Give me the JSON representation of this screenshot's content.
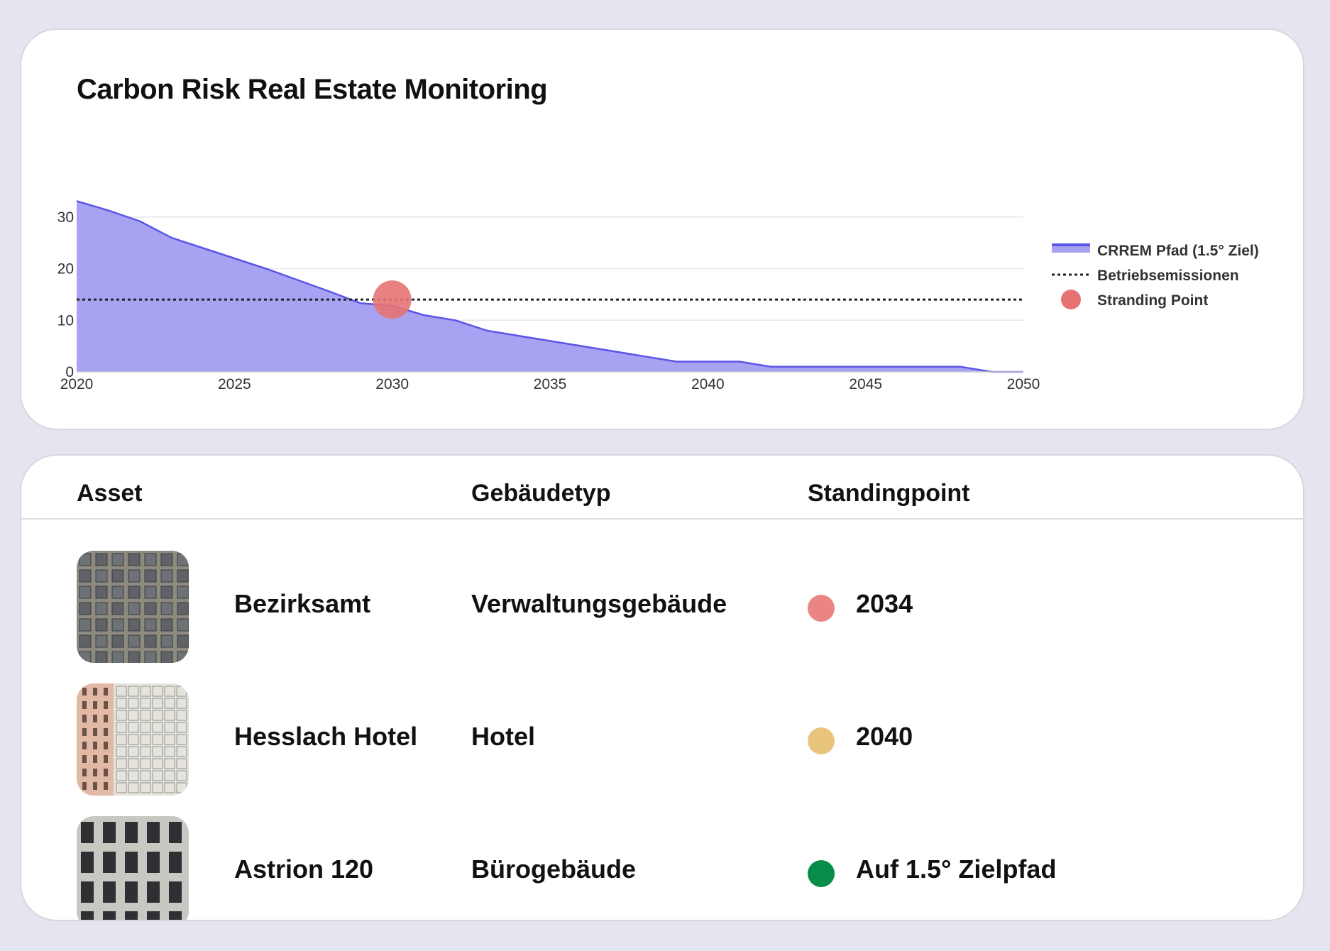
{
  "chart_card": {
    "title": "Carbon Risk Real Estate Monitoring"
  },
  "chart_data": {
    "type": "area",
    "title": "Carbon Risk Real Estate Monitoring",
    "xlabel": "",
    "ylabel": "",
    "xlim": [
      2020,
      2050
    ],
    "ylim": [
      0,
      33
    ],
    "x_ticks": [
      "2020",
      "2025",
      "2030",
      "2035",
      "2040",
      "2045",
      "2050"
    ],
    "y_ticks": [
      "0",
      "10",
      "20",
      "30"
    ],
    "grid": true,
    "legend_position": "right",
    "series": [
      {
        "name": "CRREM Pfad (1.5° Ziel)",
        "type": "area",
        "color": "#5b55e8",
        "fill": "#a7a2f2",
        "x": [
          2020,
          2021,
          2022,
          2023,
          2024,
          2025,
          2026,
          2027,
          2028,
          2029,
          2030,
          2031,
          2032,
          2033,
          2034,
          2035,
          2036,
          2037,
          2038,
          2039,
          2040,
          2041,
          2042,
          2043,
          2044,
          2045,
          2046,
          2047,
          2048,
          2049,
          2050
        ],
        "y": [
          33.1,
          31.3,
          29.2,
          26.0,
          24.0,
          22.0,
          20.0,
          17.8,
          15.6,
          13.3,
          12.8,
          11.0,
          10.0,
          8.0,
          7.0,
          6.0,
          5.0,
          4.0,
          3.0,
          2.0,
          2.0,
          2.0,
          1.0,
          1.0,
          1.0,
          1.0,
          1.0,
          1.0,
          1.0,
          0.0,
          0.0
        ]
      },
      {
        "name": "Betriebsemissionen",
        "type": "line",
        "style": "dotted",
        "color": "#222222",
        "x": [
          2020,
          2050
        ],
        "y": [
          14,
          14
        ]
      },
      {
        "name": "Stranding Point",
        "type": "scatter",
        "color": "#e57373",
        "x": [
          2030
        ],
        "y": [
          14
        ]
      }
    ]
  },
  "table": {
    "columns": [
      "Asset",
      "Gebäudetyp",
      "Standingpoint"
    ],
    "rows": [
      {
        "asset": "Bezirksamt",
        "type": "Verwaltungsgebäude",
        "standing": "2034",
        "status_color": "#eb8585",
        "thumb": "grey-grid-facade-image"
      },
      {
        "asset": "Hesslach Hotel",
        "type": "Hotel",
        "standing": "2040",
        "status_color": "#e9c47d",
        "thumb": "glass-hotel-facade-image"
      },
      {
        "asset": "Astrion 120",
        "type": "Bürogebäude",
        "standing": "Auf 1.5° Zielpfad",
        "status_color": "#078d48",
        "thumb": "brick-office-facade-image"
      }
    ]
  }
}
